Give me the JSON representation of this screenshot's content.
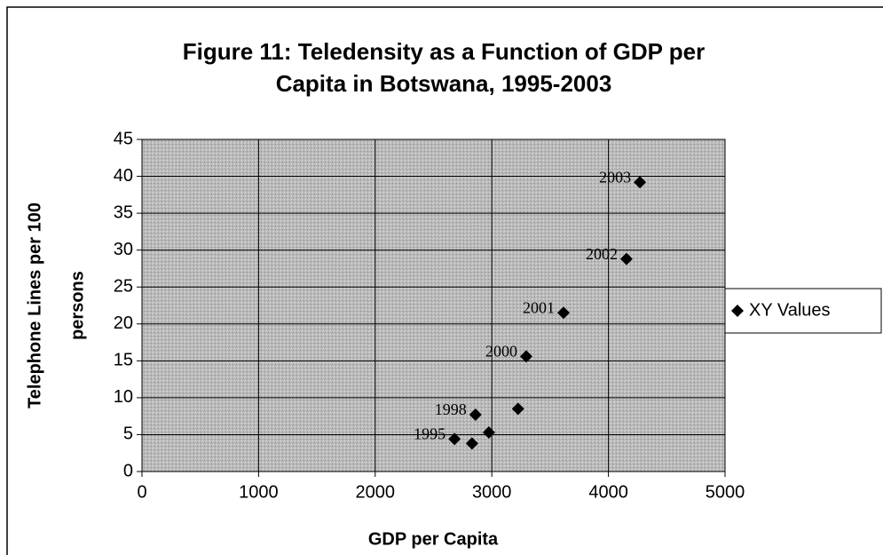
{
  "chart_data": {
    "type": "scatter",
    "title": [
      "Figure 11: Teledensity as a Function of GDP per",
      "Capita in Botswana, 1995-2003"
    ],
    "x_label": "GDP per Capita",
    "y_label": [
      "Telephone Lines per 100",
      "persons"
    ],
    "xlim": [
      0,
      5000
    ],
    "xticks": [
      0,
      1000,
      2000,
      3000,
      4000,
      5000
    ],
    "ylim": [
      0,
      45
    ],
    "yticks": [
      0,
      5,
      10,
      15,
      20,
      25,
      30,
      35,
      40,
      45
    ],
    "grid": true,
    "legend": "right",
    "series": [
      {
        "name": "XY Values",
        "color": "#000000",
        "x": [
          2680,
          2830,
          2975,
          2860,
          3225,
          3295,
          3615,
          4155,
          4270
        ],
        "values": [
          4.4,
          3.8,
          5.3,
          7.7,
          8.5,
          15.6,
          21.5,
          28.8,
          39.2
        ],
        "point_labels": [
          "1995",
          null,
          null,
          "1998",
          null,
          "2000",
          "2001",
          "2002",
          "2003"
        ]
      }
    ]
  }
}
